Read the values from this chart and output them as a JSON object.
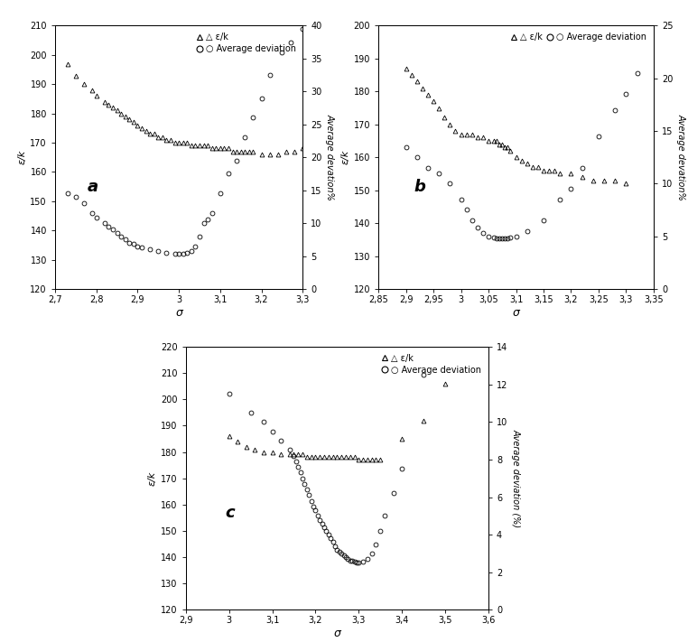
{
  "panel_a": {
    "label": "a",
    "xlabel": "σ",
    "ylabel_left": "ε/k",
    "ylabel_right": "Average devation%",
    "xlim": [
      2.7,
      3.3
    ],
    "ylim_left": [
      120,
      210
    ],
    "ylim_right": [
      0,
      40
    ],
    "xticks": [
      2.7,
      2.8,
      2.9,
      3.0,
      3.1,
      3.2,
      3.3
    ],
    "yticks_left": [
      120,
      130,
      140,
      150,
      160,
      170,
      180,
      190,
      200,
      210
    ],
    "yticks_right": [
      0,
      5,
      10,
      15,
      20,
      25,
      30,
      35,
      40
    ],
    "eps_k": {
      "sigma": [
        2.73,
        2.75,
        2.77,
        2.79,
        2.8,
        2.82,
        2.83,
        2.84,
        2.85,
        2.86,
        2.87,
        2.88,
        2.89,
        2.9,
        2.91,
        2.92,
        2.93,
        2.94,
        2.95,
        2.96,
        2.97,
        2.98,
        2.99,
        3.0,
        3.01,
        3.02,
        3.03,
        3.04,
        3.05,
        3.06,
        3.07,
        3.08,
        3.09,
        3.1,
        3.11,
        3.12,
        3.13,
        3.14,
        3.15,
        3.16,
        3.17,
        3.18,
        3.2,
        3.22,
        3.24,
        3.26,
        3.28,
        3.3
      ],
      "value": [
        197,
        193,
        190,
        188,
        186,
        184,
        183,
        182,
        181,
        180,
        179,
        178,
        177,
        176,
        175,
        174,
        173,
        173,
        172,
        172,
        171,
        171,
        170,
        170,
        170,
        170,
        169,
        169,
        169,
        169,
        169,
        168,
        168,
        168,
        168,
        168,
        167,
        167,
        167,
        167,
        167,
        167,
        166,
        166,
        166,
        167,
        167,
        168
      ]
    },
    "avg_dev": {
      "sigma": [
        2.73,
        2.75,
        2.77,
        2.79,
        2.8,
        2.82,
        2.83,
        2.84,
        2.85,
        2.86,
        2.87,
        2.88,
        2.89,
        2.9,
        2.91,
        2.93,
        2.95,
        2.97,
        2.99,
        3.0,
        3.01,
        3.02,
        3.03,
        3.04,
        3.05,
        3.06,
        3.07,
        3.08,
        3.1,
        3.12,
        3.14,
        3.16,
        3.18,
        3.2,
        3.22,
        3.25,
        3.27,
        3.3
      ],
      "value": [
        14.5,
        14.0,
        13.0,
        11.5,
        10.8,
        10.0,
        9.5,
        9.0,
        8.5,
        8.0,
        7.5,
        7.0,
        6.8,
        6.5,
        6.3,
        6.0,
        5.8,
        5.5,
        5.4,
        5.3,
        5.3,
        5.5,
        5.8,
        6.5,
        8.0,
        10.0,
        10.5,
        11.5,
        14.5,
        17.5,
        19.5,
        23.0,
        26.0,
        29.0,
        32.5,
        36.0,
        37.5,
        39.5
      ]
    }
  },
  "panel_b": {
    "label": "b",
    "xlabel": "σ",
    "ylabel_left": "ε/k",
    "ylabel_right": "Average devation%",
    "xlim": [
      2.85,
      3.35
    ],
    "ylim_left": [
      120,
      200
    ],
    "ylim_right": [
      0,
      25
    ],
    "xticks": [
      2.85,
      2.9,
      2.95,
      3.0,
      3.05,
      3.1,
      3.15,
      3.2,
      3.25,
      3.3,
      3.35
    ],
    "yticks_left": [
      120,
      130,
      140,
      150,
      160,
      170,
      180,
      190,
      200
    ],
    "yticks_right": [
      0,
      5,
      10,
      15,
      20,
      25
    ],
    "eps_k": {
      "sigma": [
        2.9,
        2.91,
        2.92,
        2.93,
        2.94,
        2.95,
        2.96,
        2.97,
        2.98,
        2.99,
        3.0,
        3.01,
        3.02,
        3.03,
        3.04,
        3.05,
        3.06,
        3.065,
        3.07,
        3.075,
        3.08,
        3.085,
        3.09,
        3.1,
        3.11,
        3.12,
        3.13,
        3.14,
        3.15,
        3.16,
        3.17,
        3.18,
        3.2,
        3.22,
        3.24,
        3.26,
        3.28,
        3.3
      ],
      "value": [
        187,
        185,
        183,
        181,
        179,
        177,
        175,
        172,
        170,
        168,
        167,
        167,
        167,
        166,
        166,
        165,
        165,
        165,
        164,
        164,
        163,
        163,
        162,
        160,
        159,
        158,
        157,
        157,
        156,
        156,
        156,
        155,
        155,
        154,
        153,
        153,
        153,
        152
      ]
    },
    "avg_dev": {
      "sigma": [
        2.9,
        2.92,
        2.94,
        2.96,
        2.98,
        3.0,
        3.01,
        3.02,
        3.03,
        3.04,
        3.05,
        3.06,
        3.065,
        3.07,
        3.075,
        3.08,
        3.085,
        3.09,
        3.1,
        3.12,
        3.15,
        3.18,
        3.2,
        3.22,
        3.25,
        3.28,
        3.3,
        3.32
      ],
      "value": [
        13.5,
        12.5,
        11.5,
        11.0,
        10.0,
        8.5,
        7.5,
        6.5,
        5.8,
        5.3,
        5.0,
        4.9,
        4.8,
        4.8,
        4.8,
        4.8,
        4.8,
        4.9,
        5.0,
        5.5,
        6.5,
        8.5,
        9.5,
        11.5,
        14.5,
        17.0,
        18.5,
        20.5
      ]
    }
  },
  "panel_c": {
    "label": "c",
    "xlabel": "σ",
    "ylabel_left": "ε/k",
    "ylabel_right": "Average deviation (%)",
    "xlim": [
      2.9,
      3.6
    ],
    "ylim_left": [
      120,
      220
    ],
    "ylim_right": [
      0,
      14
    ],
    "xticks": [
      2.9,
      3.0,
      3.1,
      3.2,
      3.3,
      3.4,
      3.5,
      3.6
    ],
    "yticks_left": [
      120,
      130,
      140,
      150,
      160,
      170,
      180,
      190,
      200,
      210,
      220
    ],
    "yticks_right": [
      0,
      2,
      4,
      6,
      8,
      10,
      12,
      14
    ],
    "eps_k": {
      "sigma": [
        3.0,
        3.02,
        3.04,
        3.06,
        3.08,
        3.1,
        3.12,
        3.14,
        3.15,
        3.16,
        3.17,
        3.18,
        3.19,
        3.2,
        3.21,
        3.22,
        3.23,
        3.24,
        3.25,
        3.26,
        3.27,
        3.28,
        3.29,
        3.3,
        3.31,
        3.32,
        3.33,
        3.34,
        3.35,
        3.4,
        3.45,
        3.5
      ],
      "value": [
        186,
        184,
        182,
        181,
        180,
        180,
        179,
        179,
        179,
        179,
        179,
        178,
        178,
        178,
        178,
        178,
        178,
        178,
        178,
        178,
        178,
        178,
        178,
        177,
        177,
        177,
        177,
        177,
        177,
        185,
        192,
        206
      ]
    },
    "avg_dev": {
      "sigma": [
        3.0,
        3.05,
        3.08,
        3.1,
        3.12,
        3.14,
        3.15,
        3.155,
        3.16,
        3.165,
        3.17,
        3.175,
        3.18,
        3.185,
        3.19,
        3.195,
        3.2,
        3.205,
        3.21,
        3.215,
        3.22,
        3.225,
        3.23,
        3.235,
        3.24,
        3.245,
        3.25,
        3.255,
        3.26,
        3.265,
        3.27,
        3.275,
        3.28,
        3.285,
        3.29,
        3.295,
        3.3,
        3.31,
        3.32,
        3.33,
        3.34,
        3.35,
        3.36,
        3.38,
        3.4,
        3.45
      ],
      "value": [
        11.5,
        10.5,
        10.0,
        9.5,
        9.0,
        8.5,
        8.2,
        7.9,
        7.6,
        7.3,
        7.0,
        6.7,
        6.4,
        6.1,
        5.8,
        5.5,
        5.3,
        5.0,
        4.8,
        4.6,
        4.4,
        4.2,
        4.0,
        3.8,
        3.6,
        3.4,
        3.2,
        3.1,
        3.0,
        2.9,
        2.8,
        2.7,
        2.6,
        2.6,
        2.55,
        2.52,
        2.5,
        2.55,
        2.7,
        3.0,
        3.5,
        4.2,
        5.0,
        6.2,
        7.5,
        12.5
      ]
    }
  }
}
